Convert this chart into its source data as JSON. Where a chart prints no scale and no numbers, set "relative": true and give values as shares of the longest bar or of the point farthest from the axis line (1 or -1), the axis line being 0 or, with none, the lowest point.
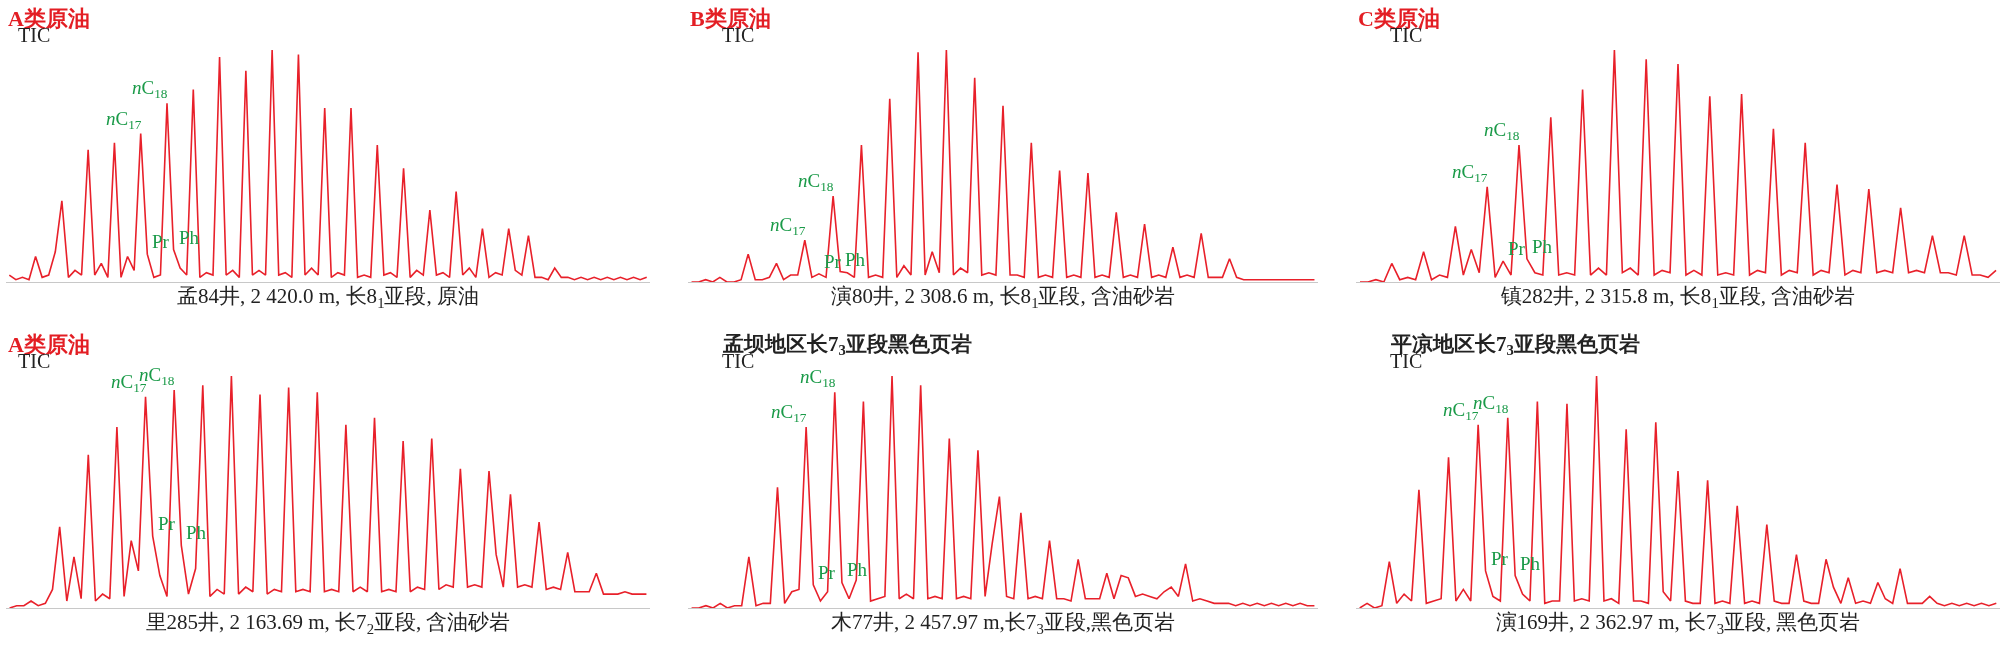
{
  "chart_data": [
    {
      "type": "line",
      "relative": true,
      "title": "A类原油",
      "ylabel": "TIC",
      "xlabel": "孟84井, 2 420.0 m, 长8$_{1}$亚段, 原油",
      "marker": "none",
      "line_style": "solid",
      "tick_labels": false,
      "categories": [
        null,
        null,
        null,
        null,
        null,
        null,
        null,
        null,
        null,
        null,
        null,
        null,
        null,
        null,
        null,
        null,
        null,
        null,
        null,
        null,
        null,
        null,
        null,
        null,
        null,
        null,
        null,
        null,
        null,
        null,
        null,
        null,
        null,
        null,
        null,
        null,
        null,
        null,
        null,
        null,
        null,
        null,
        null,
        null,
        null,
        null,
        null,
        null,
        null,
        null,
        null,
        null,
        null,
        null,
        null,
        null,
        null,
        null,
        null,
        null,
        null,
        null,
        null,
        null,
        null,
        null,
        null,
        null,
        null,
        null,
        null,
        null,
        null,
        null,
        null,
        null,
        null,
        null,
        null,
        null,
        null,
        null,
        null,
        null,
        null,
        null,
        null,
        null,
        null,
        null,
        null,
        null,
        null,
        null,
        null,
        null,
        null,
        null
      ],
      "series": [
        {
          "color": "#e8202a",
          "values": [
            0.03,
            0.01,
            0.02,
            0.01,
            0.11,
            0.02,
            0.03,
            0.13,
            0.35,
            0.02,
            0.05,
            0.03,
            0.57,
            0.03,
            0.08,
            0.02,
            0.6,
            0.02,
            0.11,
            0.05,
            0.64,
            0.12,
            0.02,
            0.03,
            0.77,
            0.14,
            0.06,
            0.03,
            0.83,
            0.02,
            0.04,
            0.03,
            0.97,
            0.03,
            0.05,
            0.02,
            0.91,
            0.03,
            0.05,
            0.03,
            1,
            0.03,
            0.04,
            0.02,
            0.98,
            0.03,
            0.06,
            0.03,
            0.75,
            0.02,
            0.04,
            0.03,
            0.75,
            0.02,
            0.03,
            0.02,
            0.59,
            0.03,
            0.04,
            0.02,
            0.49,
            0.02,
            0.05,
            0.03,
            0.31,
            0.03,
            0.04,
            0.02,
            0.39,
            0.03,
            0.06,
            0.02,
            0.23,
            0.02,
            0.04,
            0.03,
            0.23,
            0.05,
            0.03,
            0.2,
            0.02,
            0.02,
            0.01,
            0.06,
            0.02,
            0.02,
            0.01,
            0.02,
            0.01,
            0.02,
            0.01,
            0.02,
            0.01,
            0.02,
            0.01,
            0.02,
            0.01,
            0.02
          ]
        }
      ],
      "annotations": [
        "nC$_{17}$",
        "nC$_{18}$",
        "Pr",
        "Ph"
      ]
    },
    {
      "type": "line",
      "relative": true,
      "title": "B类原油",
      "ylabel": "TIC",
      "xlabel": "演80井, 2 308.6 m, 长8$_{1}$亚段, 含油砂岩",
      "marker": "none",
      "line_style": "solid",
      "tick_labels": false,
      "categories": [
        null,
        null,
        null,
        null,
        null,
        null,
        null,
        null,
        null,
        null,
        null,
        null,
        null,
        null,
        null,
        null,
        null,
        null,
        null,
        null,
        null,
        null,
        null,
        null,
        null,
        null,
        null,
        null,
        null,
        null,
        null,
        null,
        null,
        null,
        null,
        null,
        null,
        null,
        null,
        null,
        null,
        null,
        null,
        null,
        null,
        null,
        null,
        null,
        null,
        null,
        null,
        null,
        null,
        null,
        null,
        null,
        null,
        null,
        null,
        null,
        null,
        null,
        null,
        null,
        null,
        null,
        null,
        null,
        null,
        null,
        null,
        null,
        null,
        null,
        null,
        null,
        null,
        null,
        null,
        null,
        null,
        null,
        null,
        null,
        null,
        null,
        null,
        null,
        null
      ],
      "series": [
        {
          "color": "#e8202a",
          "values": [
            0,
            0,
            0.01,
            0,
            0.02,
            0,
            0,
            0.01,
            0.12,
            0.01,
            0.01,
            0.02,
            0.08,
            0.01,
            0.03,
            0.03,
            0.18,
            0.02,
            0.035,
            0.02,
            0.37,
            0.045,
            0.04,
            0.02,
            0.59,
            0.02,
            0.03,
            0.02,
            0.79,
            0.02,
            0.07,
            0.03,
            0.99,
            0.03,
            0.13,
            0.04,
            1,
            0.03,
            0.06,
            0.04,
            0.88,
            0.03,
            0.04,
            0.03,
            0.76,
            0.03,
            0.03,
            0.02,
            0.6,
            0.02,
            0.03,
            0.02,
            0.48,
            0.02,
            0.03,
            0.02,
            0.47,
            0.02,
            0.03,
            0.02,
            0.3,
            0.02,
            0.03,
            0.02,
            0.25,
            0.02,
            0.03,
            0.02,
            0.15,
            0.02,
            0.03,
            0.02,
            0.21,
            0.02,
            0.02,
            0.02,
            0.1,
            0.02,
            0.01,
            0.01,
            0.01,
            0.01,
            0.01,
            0.01,
            0.01,
            0.01,
            0.01,
            0.01,
            0.01
          ]
        }
      ],
      "annotations": [
        "nC$_{17}$",
        "nC$_{18}$",
        "Pr",
        "Ph"
      ]
    },
    {
      "type": "line",
      "relative": true,
      "title": "C类原油",
      "ylabel": "TIC",
      "xlabel": "镇282井, 2 315.8 m, 长8$_{1}$亚段, 含油砂岩",
      "marker": "none",
      "line_style": "solid",
      "tick_labels": false,
      "categories": [
        null,
        null,
        null,
        null,
        null,
        null,
        null,
        null,
        null,
        null,
        null,
        null,
        null,
        null,
        null,
        null,
        null,
        null,
        null,
        null,
        null,
        null,
        null,
        null,
        null,
        null,
        null,
        null,
        null,
        null,
        null,
        null,
        null,
        null,
        null,
        null,
        null,
        null,
        null,
        null,
        null,
        null,
        null,
        null,
        null,
        null,
        null,
        null,
        null,
        null,
        null,
        null,
        null,
        null,
        null,
        null,
        null,
        null,
        null,
        null,
        null,
        null,
        null,
        null,
        null,
        null,
        null,
        null,
        null,
        null,
        null,
        null,
        null,
        null,
        null,
        null,
        null,
        null,
        null,
        null,
        null
      ],
      "series": [
        {
          "color": "#e8202a",
          "values": [
            0,
            0,
            0.01,
            0,
            0.08,
            0.01,
            0.02,
            0.01,
            0.13,
            0.01,
            0.03,
            0.02,
            0.24,
            0.03,
            0.14,
            0.04,
            0.41,
            0.02,
            0.09,
            0.03,
            0.59,
            0.1,
            0.04,
            0.03,
            0.71,
            0.03,
            0.04,
            0.03,
            0.83,
            0.03,
            0.06,
            0.03,
            1,
            0.04,
            0.06,
            0.03,
            0.96,
            0.03,
            0.05,
            0.04,
            0.94,
            0.03,
            0.05,
            0.03,
            0.8,
            0.03,
            0.04,
            0.03,
            0.81,
            0.03,
            0.05,
            0.04,
            0.66,
            0.03,
            0.05,
            0.04,
            0.6,
            0.03,
            0.05,
            0.04,
            0.42,
            0.03,
            0.05,
            0.04,
            0.4,
            0.04,
            0.05,
            0.04,
            0.32,
            0.04,
            0.05,
            0.04,
            0.2,
            0.04,
            0.04,
            0.03,
            0.2,
            0.03,
            0.03,
            0.02,
            0.05
          ]
        }
      ],
      "annotations": [
        "nC$_{17}$",
        "nC$_{18}$",
        "Pr",
        "Ph"
      ]
    },
    {
      "type": "line",
      "relative": true,
      "title": "A类原油",
      "ylabel": "TIC",
      "xlabel": "里285井, 2 163.69 m, 长7$_{2}$亚段, 含油砂岩",
      "marker": "none",
      "line_style": "solid",
      "tick_labels": false,
      "categories": [
        null,
        null,
        null,
        null,
        null,
        null,
        null,
        null,
        null,
        null,
        null,
        null,
        null,
        null,
        null,
        null,
        null,
        null,
        null,
        null,
        null,
        null,
        null,
        null,
        null,
        null,
        null,
        null,
        null,
        null,
        null,
        null,
        null,
        null,
        null,
        null,
        null,
        null,
        null,
        null,
        null,
        null,
        null,
        null,
        null,
        null,
        null,
        null,
        null,
        null,
        null,
        null,
        null,
        null,
        null,
        null,
        null,
        null,
        null,
        null,
        null,
        null,
        null,
        null,
        null,
        null,
        null,
        null,
        null,
        null,
        null,
        null,
        null,
        null,
        null,
        null,
        null,
        null,
        null,
        null,
        null,
        null,
        null,
        null,
        null,
        null,
        null,
        null,
        null,
        null
      ],
      "series": [
        {
          "color": "#e8202a",
          "values": [
            0,
            0.01,
            0.01,
            0.03,
            0.01,
            0.02,
            0.08,
            0.35,
            0.03,
            0.22,
            0.04,
            0.66,
            0.03,
            0.06,
            0.04,
            0.78,
            0.05,
            0.29,
            0.16,
            0.91,
            0.31,
            0.14,
            0.05,
            0.94,
            0.27,
            0.06,
            0.17,
            0.96,
            0.05,
            0.08,
            0.06,
            1,
            0.06,
            0.09,
            0.07,
            0.92,
            0.06,
            0.08,
            0.07,
            0.95,
            0.07,
            0.08,
            0.07,
            0.93,
            0.07,
            0.08,
            0.07,
            0.79,
            0.07,
            0.09,
            0.07,
            0.82,
            0.07,
            0.08,
            0.07,
            0.72,
            0.07,
            0.09,
            0.08,
            0.73,
            0.08,
            0.1,
            0.09,
            0.6,
            0.09,
            0.1,
            0.09,
            0.59,
            0.23,
            0.09,
            0.49,
            0.09,
            0.1,
            0.09,
            0.37,
            0.08,
            0.09,
            0.08,
            0.24,
            0.07,
            0.07,
            0.07,
            0.15,
            0.06,
            0.06,
            0.06,
            0.07,
            0.06,
            0.06,
            0.06
          ]
        }
      ],
      "annotations": [
        "nC$_{17}$",
        "nC$_{18}$",
        "Pr",
        "Ph"
      ]
    },
    {
      "type": "line",
      "relative": true,
      "subtitle": "孟坝地区长7$_{3}$亚段黑色页岩",
      "ylabel": "TIC",
      "xlabel": "木77井, 2 457.97 m,长7$_{3}$亚段,黑色页岩",
      "marker": "none",
      "line_style": "solid",
      "tick_labels": false,
      "categories": [
        null,
        null,
        null,
        null,
        null,
        null,
        null,
        null,
        null,
        null,
        null,
        null,
        null,
        null,
        null,
        null,
        null,
        null,
        null,
        null,
        null,
        null,
        null,
        null,
        null,
        null,
        null,
        null,
        null,
        null,
        null,
        null,
        null,
        null,
        null,
        null,
        null,
        null,
        null,
        null,
        null,
        null,
        null,
        null,
        null,
        null,
        null,
        null,
        null,
        null,
        null,
        null,
        null,
        null,
        null,
        null,
        null,
        null,
        null,
        null,
        null,
        null,
        null,
        null,
        null,
        null,
        null,
        null,
        null,
        null,
        null,
        null,
        null,
        null,
        null,
        null,
        null,
        null,
        null,
        null,
        null,
        null,
        null,
        null,
        null,
        null,
        null,
        null
      ],
      "series": [
        {
          "color": "#e8202a",
          "values": [
            0,
            0,
            0.01,
            0,
            0.02,
            0,
            0.01,
            0.01,
            0.22,
            0.01,
            0.02,
            0.02,
            0.52,
            0.02,
            0.07,
            0.08,
            0.78,
            0.1,
            0.03,
            0.07,
            0.93,
            0.11,
            0.04,
            0.12,
            0.89,
            0.03,
            0.04,
            0.05,
            1,
            0.04,
            0.06,
            0.04,
            0.96,
            0.04,
            0.05,
            0.04,
            0.73,
            0.04,
            0.05,
            0.04,
            0.68,
            0.05,
            0.28,
            0.48,
            0.05,
            0.04,
            0.41,
            0.04,
            0.05,
            0.04,
            0.29,
            0.04,
            0.04,
            0.03,
            0.21,
            0.04,
            0.04,
            0.04,
            0.15,
            0.04,
            0.14,
            0.13,
            0.05,
            0.06,
            0.05,
            0.04,
            0.07,
            0.09,
            0.05,
            0.19,
            0.03,
            0.04,
            0.03,
            0.02,
            0.02,
            0.02,
            0.01,
            0.02,
            0.01,
            0.02,
            0.01,
            0.02,
            0.01,
            0.02,
            0.01,
            0.02,
            0.01,
            0.01
          ]
        }
      ],
      "annotations": [
        "nC$_{17}$",
        "nC$_{18}$",
        "Pr",
        "Ph"
      ]
    },
    {
      "type": "line",
      "relative": true,
      "subtitle": "平凉地区长7$_{3}$亚段黑色页岩",
      "ylabel": "TIC",
      "xlabel": "演169井, 2 362.97 m, 长7$_{3}$亚段, 黑色页岩",
      "marker": "none",
      "line_style": "solid",
      "tick_labels": false,
      "categories": [
        null,
        null,
        null,
        null,
        null,
        null,
        null,
        null,
        null,
        null,
        null,
        null,
        null,
        null,
        null,
        null,
        null,
        null,
        null,
        null,
        null,
        null,
        null,
        null,
        null,
        null,
        null,
        null,
        null,
        null,
        null,
        null,
        null,
        null,
        null,
        null,
        null,
        null,
        null,
        null,
        null,
        null,
        null,
        null,
        null,
        null,
        null,
        null,
        null,
        null,
        null,
        null,
        null,
        null,
        null,
        null,
        null,
        null,
        null,
        null,
        null,
        null,
        null,
        null,
        null,
        null,
        null,
        null,
        null,
        null,
        null,
        null,
        null,
        null,
        null,
        null,
        null,
        null,
        null,
        null,
        null,
        null,
        null,
        null,
        null,
        null,
        null
      ],
      "series": [
        {
          "color": "#e8202a",
          "values": [
            0,
            0.02,
            0,
            0.01,
            0.2,
            0.02,
            0.06,
            0.03,
            0.51,
            0.02,
            0.03,
            0.04,
            0.65,
            0.03,
            0.08,
            0.03,
            0.79,
            0.16,
            0.05,
            0.03,
            0.82,
            0.14,
            0.06,
            0.03,
            0.89,
            0.02,
            0.03,
            0.03,
            0.88,
            0.03,
            0.04,
            0.03,
            1,
            0.03,
            0.04,
            0.02,
            0.77,
            0.03,
            0.03,
            0.02,
            0.8,
            0.07,
            0.03,
            0.59,
            0.03,
            0.02,
            0.02,
            0.55,
            0.02,
            0.03,
            0.02,
            0.44,
            0.02,
            0.03,
            0.02,
            0.36,
            0.03,
            0.02,
            0.02,
            0.23,
            0.03,
            0.02,
            0.02,
            0.21,
            0.09,
            0.02,
            0.13,
            0.02,
            0.03,
            0.02,
            0.11,
            0.04,
            0.02,
            0.17,
            0.02,
            0.02,
            0.02,
            0.05,
            0.02,
            0.01,
            0.02,
            0.01,
            0.02,
            0.01,
            0.02,
            0.01,
            0.02
          ]
        }
      ],
      "annotations": [
        "nC$_{17}$",
        "nC$_{18}$",
        "Pr",
        "Ph"
      ]
    }
  ]
}
